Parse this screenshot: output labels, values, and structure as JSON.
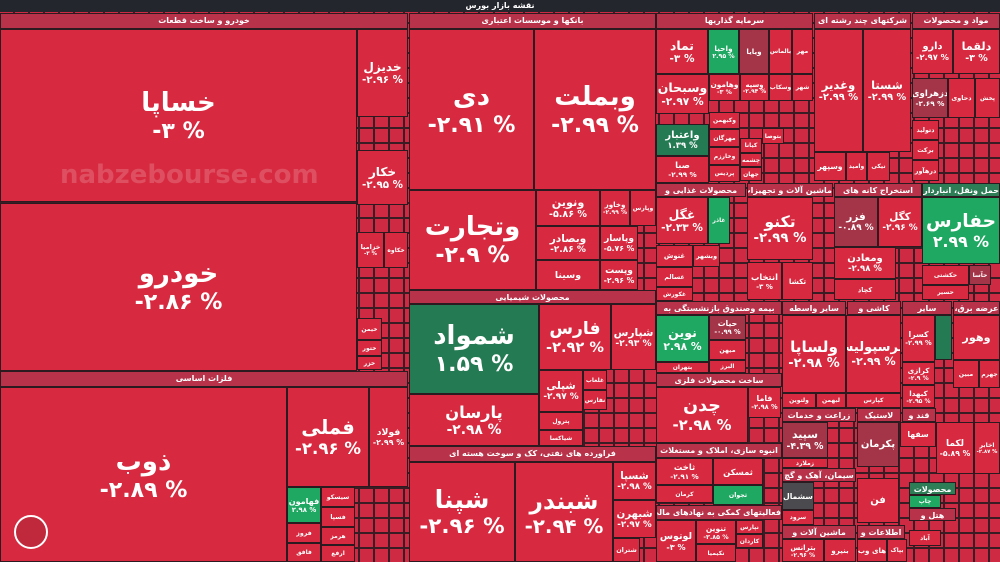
{
  "header": {
    "title": "نقشه بازار بورس"
  },
  "watermark": "nabzebourse.com",
  "colors": {
    "negative": "#d7293f",
    "mild": "#a43447",
    "positive": "#1fa862",
    "positive_dark": "#247a52",
    "header_bg": "#23262d"
  },
  "sectors": [
    {
      "label": "خودرو و ساخت قطعات"
    },
    {
      "label": "بانکها و موسسات اعتباری"
    },
    {
      "label": "سرمایه گذاریها"
    },
    {
      "label": "شرکتهای چند رشته ای"
    },
    {
      "label": "مواد و محصولات"
    },
    {
      "label": "فلزات اساسی"
    },
    {
      "label": "محصولات شیمیایی"
    },
    {
      "label": "فراورده های نفتی، کک و سوخت هسته ای"
    },
    {
      "label": "محصولات غذایی و"
    },
    {
      "label": "ماشین آلات و تجهیزات"
    },
    {
      "label": "استخراج کانه های"
    },
    {
      "label": "حمل ونقل، انبارداری"
    },
    {
      "label": "بیمه وصندوق بازنشستگی به"
    },
    {
      "label": "سایر واسطه"
    },
    {
      "label": "کاشی و"
    },
    {
      "label": "سایر"
    },
    {
      "label": "عرضه برق،"
    },
    {
      "label": "ساخت محصولات فلزی"
    },
    {
      "label": "زراعت و خدمات"
    },
    {
      "label": "لاستیک"
    },
    {
      "label": "قند و"
    },
    {
      "label": "انبوه سازی، املاک و مستغلات"
    },
    {
      "label": "سیمان، آهک و گچ"
    },
    {
      "label": "محصولات"
    },
    {
      "label": "فعالیتهای کمکی به نهادهای مالی"
    },
    {
      "label": "ماشین آلات و"
    },
    {
      "label": "اطلاعات و"
    },
    {
      "label": "هتل و"
    }
  ],
  "tiles": [
    {
      "name": "خساپا",
      "pct": "-۳ %"
    },
    {
      "name": "خودرو",
      "pct": "-۲.۸۶ %"
    },
    {
      "name": "ذوب",
      "pct": "-۲.۸۹ %"
    },
    {
      "name": "خدیزل",
      "pct": "-۲.۹۶ %"
    },
    {
      "name": "خکار",
      "pct": "-۲.۹۵ %"
    },
    {
      "name": "خزامیا",
      "pct": "-۳ %"
    },
    {
      "name": "خکاوه",
      "pct": ""
    },
    {
      "name": "خیمن",
      "pct": ""
    },
    {
      "name": "ختور",
      "pct": ""
    },
    {
      "name": "خزر",
      "pct": ""
    },
    {
      "name": "فملی",
      "pct": "-۲.۹۶ %"
    },
    {
      "name": "فولاد",
      "pct": "-۲.۹۹ %"
    },
    {
      "name": "فهامون",
      "pct": "۲.۹۸ %"
    },
    {
      "name": "سیسکو",
      "pct": ""
    },
    {
      "name": "فسپا",
      "pct": ""
    },
    {
      "name": "هرمز",
      "pct": ""
    },
    {
      "name": "فروز",
      "pct": ""
    },
    {
      "name": "ارفع",
      "pct": ""
    },
    {
      "name": "فافق",
      "pct": ""
    },
    {
      "name": "دی",
      "pct": "-۲.۹۱ %"
    },
    {
      "name": "وبملت",
      "pct": "-۲.۹۹ %"
    },
    {
      "name": "وتجارت",
      "pct": "-۲.۹ %"
    },
    {
      "name": "ونوین",
      "pct": "-۵.۸۶ %"
    },
    {
      "name": "وخاور",
      "pct": "-۲.۹۹ %"
    },
    {
      "name": "وپارس",
      "pct": ""
    },
    {
      "name": "وبصادر",
      "pct": "-۲.۸۶ %"
    },
    {
      "name": "وپاسار",
      "pct": "-۵.۷۶ %"
    },
    {
      "name": "وسینا",
      "pct": ""
    },
    {
      "name": "وپست",
      "pct": "-۲.۹۶ %"
    },
    {
      "name": "شمواد",
      "pct": "۱.۵۹ %"
    },
    {
      "name": "فارس",
      "pct": "-۲.۹۲ %"
    },
    {
      "name": "شپارس",
      "pct": "-۲.۹۳ %"
    },
    {
      "name": "پارسان",
      "pct": "-۲.۹۸ %"
    },
    {
      "name": "شپلی",
      "pct": "-۲.۹۷ %"
    },
    {
      "name": "پترول",
      "pct": ""
    },
    {
      "name": "شیاکسا",
      "pct": ""
    },
    {
      "name": "غلعاب",
      "pct": ""
    },
    {
      "name": "نفارس",
      "pct": ""
    },
    {
      "name": "شپنا",
      "pct": "-۲.۹۶ %"
    },
    {
      "name": "شبندر",
      "pct": "-۲.۹۴ %"
    },
    {
      "name": "شسپا",
      "pct": "-۲.۹۸ %"
    },
    {
      "name": "شبهرن",
      "pct": "-۲.۹۷ %"
    },
    {
      "name": "شتران",
      "pct": ""
    },
    {
      "name": "تماد",
      "pct": "-۳ %"
    },
    {
      "name": "واحیا",
      "pct": "۲.۹۵ %"
    },
    {
      "name": "ویایا",
      "pct": ""
    },
    {
      "name": "بالماس",
      "pct": ""
    },
    {
      "name": "مهر",
      "pct": ""
    },
    {
      "name": "وسبحان",
      "pct": "-۲.۹۷ %"
    },
    {
      "name": "وهامون",
      "pct": "-۳ %"
    },
    {
      "name": "وسپه",
      "pct": "-۲.۹۴ %"
    },
    {
      "name": "وسکاب",
      "pct": ""
    },
    {
      "name": "شهر",
      "pct": ""
    },
    {
      "name": "واعتبار",
      "pct": "۱.۳۹ %"
    },
    {
      "name": "صبا",
      "pct": "-۲.۹۹ %"
    },
    {
      "name": "وکبهمن",
      "pct": ""
    },
    {
      "name": "مهرگان",
      "pct": ""
    },
    {
      "name": "وخارزم",
      "pct": ""
    },
    {
      "name": "پردیس",
      "pct": ""
    },
    {
      "name": "کیانا",
      "pct": ""
    },
    {
      "name": "بتوصا",
      "pct": ""
    },
    {
      "name": "چشمه",
      "pct": ""
    },
    {
      "name": "جهان",
      "pct": ""
    },
    {
      "name": "وغدیر",
      "pct": "-۲.۹۹ %"
    },
    {
      "name": "شستا",
      "pct": "-۲.۹۹ %"
    },
    {
      "name": "وسپهر",
      "pct": ""
    },
    {
      "name": "وامید",
      "pct": ""
    },
    {
      "name": "نیکی",
      "pct": ""
    },
    {
      "name": "دارو",
      "pct": "-۲.۹۷ %"
    },
    {
      "name": "دلقما",
      "pct": "-۳ %"
    },
    {
      "name": "دزهراوی",
      "pct": "-۲.۶۹ %"
    },
    {
      "name": "دحاوی",
      "pct": ""
    },
    {
      "name": "پخش",
      "pct": ""
    },
    {
      "name": "دتولید",
      "pct": ""
    },
    {
      "name": "برکت",
      "pct": ""
    },
    {
      "name": "درهآور",
      "pct": ""
    },
    {
      "name": "غگل",
      "pct": "-۲.۳۳ %"
    },
    {
      "name": "غاذر",
      "pct": ""
    },
    {
      "name": "غنوش",
      "pct": ""
    },
    {
      "name": "وبشهر",
      "pct": ""
    },
    {
      "name": "غسالم",
      "pct": ""
    },
    {
      "name": "غکورش",
      "pct": ""
    },
    {
      "name": "تکنو",
      "pct": "-۲.۹۹ %"
    },
    {
      "name": "انتخاب",
      "pct": "-۳ %"
    },
    {
      "name": "تکشا",
      "pct": ""
    },
    {
      "name": "فزر",
      "pct": "-۰.۸۹ %"
    },
    {
      "name": "کگل",
      "pct": "-۲.۹۶ %"
    },
    {
      "name": "ومعادن",
      "pct": "-۲.۹۸ %"
    },
    {
      "name": "کچاد",
      "pct": ""
    },
    {
      "name": "حفارس",
      "pct": "۲.۹۹ %"
    },
    {
      "name": "حکشتی",
      "pct": ""
    },
    {
      "name": "حآسا",
      "pct": ""
    },
    {
      "name": "حسیر",
      "pct": ""
    },
    {
      "name": "نوین",
      "pct": "۲.۹۸ %"
    },
    {
      "name": "حیات",
      "pct": "-۰.۹۹ %"
    },
    {
      "name": "میهن",
      "pct": ""
    },
    {
      "name": "البرز",
      "pct": ""
    },
    {
      "name": "بتهران",
      "pct": ""
    },
    {
      "name": "ولساپا",
      "pct": "-۲.۹۸ %"
    },
    {
      "name": "کپرسپولیس",
      "pct": "-۲.۹۹ %"
    },
    {
      "name": "ولتوین",
      "pct": ""
    },
    {
      "name": "لبهمن",
      "pct": ""
    },
    {
      "name": "کپارس",
      "pct": ""
    },
    {
      "name": "کسرا",
      "pct": "-۲.۹۹ %"
    },
    {
      "name": "کرازی",
      "pct": "-۲.۹ %"
    },
    {
      "name": "کبهدا",
      "pct": "-۲.۹۵ %"
    },
    {
      "name": "",
      "pct": ""
    },
    {
      "name": "وهور",
      "pct": ""
    },
    {
      "name": "مبین",
      "pct": ""
    },
    {
      "name": "جهرم",
      "pct": ""
    },
    {
      "name": "چدن",
      "pct": "-۲.۹۸ %"
    },
    {
      "name": "فاما",
      "pct": "-۲.۹۸ %"
    },
    {
      "name": "سپید",
      "pct": "-۴.۳۹ %"
    },
    {
      "name": "زملارد",
      "pct": ""
    },
    {
      "name": "پکرمان",
      "pct": ""
    },
    {
      "name": "سفها",
      "pct": ""
    },
    {
      "name": "لکما",
      "pct": "-۵.۸۹ %"
    },
    {
      "name": "اخابر",
      "pct": "-۲.۸۷ %"
    },
    {
      "name": "ثاخت",
      "pct": "-۲.۹۱ %"
    },
    {
      "name": "ثمسکن",
      "pct": ""
    },
    {
      "name": "ثجوان",
      "pct": ""
    },
    {
      "name": "کرمان",
      "pct": ""
    },
    {
      "name": "سشمال",
      "pct": ""
    },
    {
      "name": "سرود",
      "pct": ""
    },
    {
      "name": "فن",
      "pct": ""
    },
    {
      "name": "چاپ",
      "pct": ""
    },
    {
      "name": "آباد",
      "pct": ""
    },
    {
      "name": "لوتوس",
      "pct": "-۳ %"
    },
    {
      "name": "تنوین",
      "pct": "-۲.۸۵ %"
    },
    {
      "name": "نکیمیا",
      "pct": ""
    },
    {
      "name": "کاردان",
      "pct": ""
    },
    {
      "name": "نپارس",
      "pct": ""
    },
    {
      "name": "بترانس",
      "pct": "-۲.۹۶ %"
    },
    {
      "name": "بنیرو",
      "pct": ""
    },
    {
      "name": "های وب",
      "pct": ""
    },
    {
      "name": "بپاک",
      "pct": ""
    }
  ]
}
